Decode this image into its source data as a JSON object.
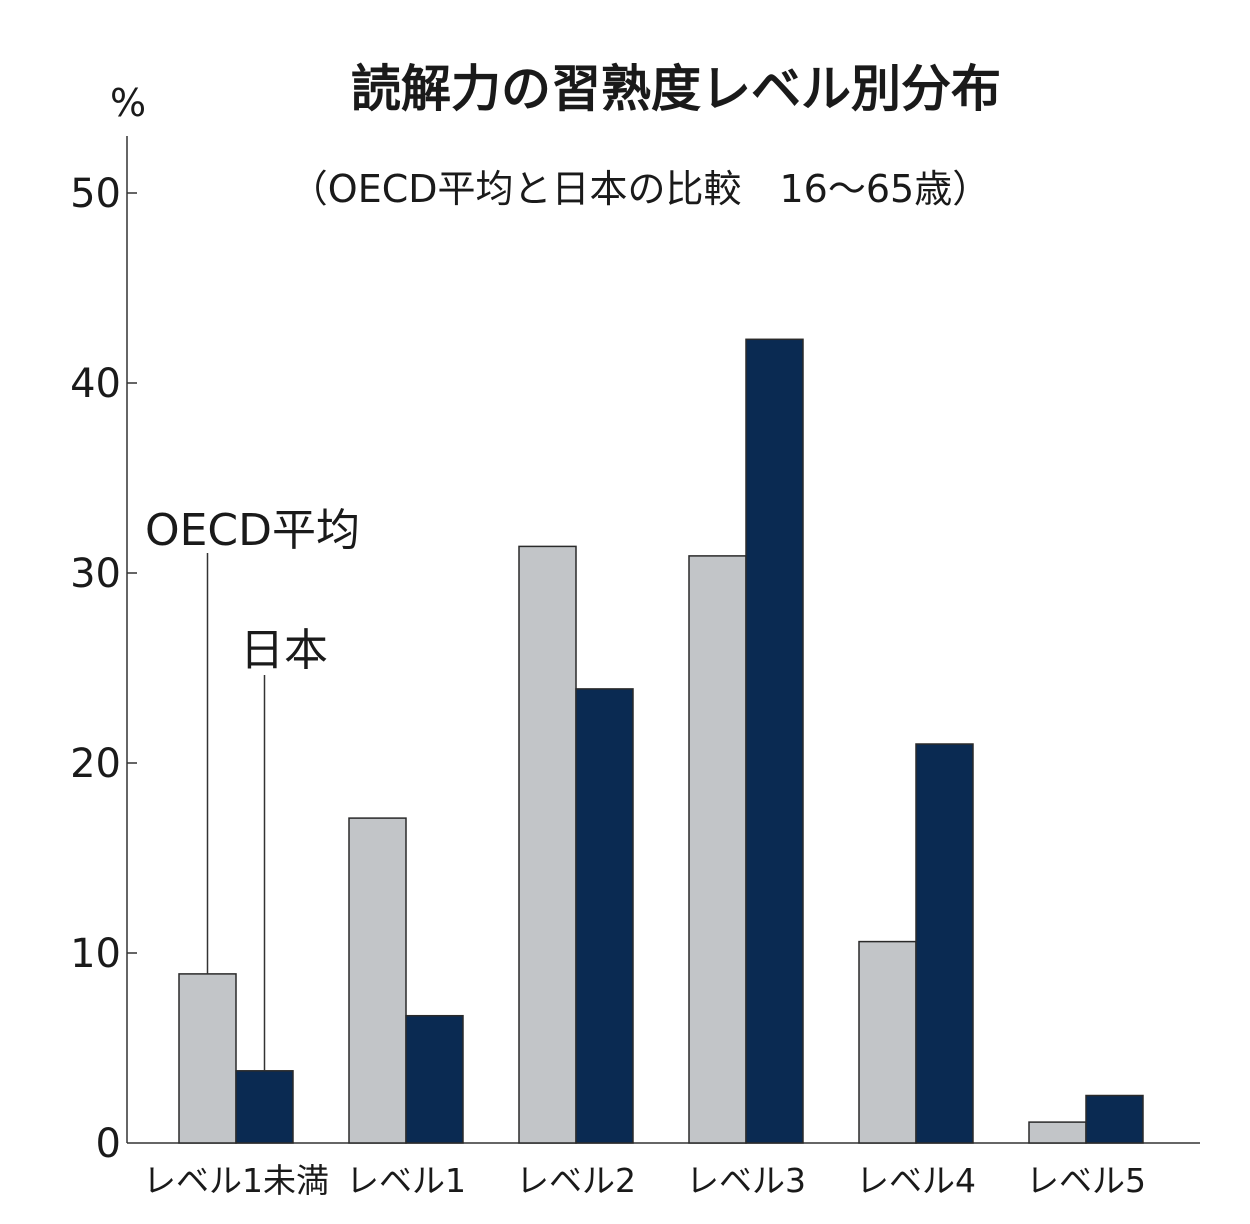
{
  "chart_data": {
    "type": "bar",
    "title": "読解力の習熟度レベル別分布",
    "subtitle": "（OECD平均と日本の比較　16〜65歳）",
    "ylabel": "%",
    "xlabel": "",
    "ylim": [
      0,
      53
    ],
    "yticks": [
      0,
      10,
      20,
      30,
      40,
      50
    ],
    "categories": [
      "レベル1未満",
      "レベル1",
      "レベル2",
      "レベル3",
      "レベル4",
      "レベル5"
    ],
    "series": [
      {
        "name": "OECD平均",
        "values": [
          8.9,
          17.1,
          31.4,
          30.9,
          10.6,
          1.1
        ],
        "color": "#c2c5c8"
      },
      {
        "name": "日本",
        "values": [
          3.8,
          6.7,
          23.9,
          42.3,
          21.0,
          2.5
        ],
        "color": "#0a2a52"
      }
    ],
    "grid": false,
    "legend_placement": "inline-callout-left"
  }
}
